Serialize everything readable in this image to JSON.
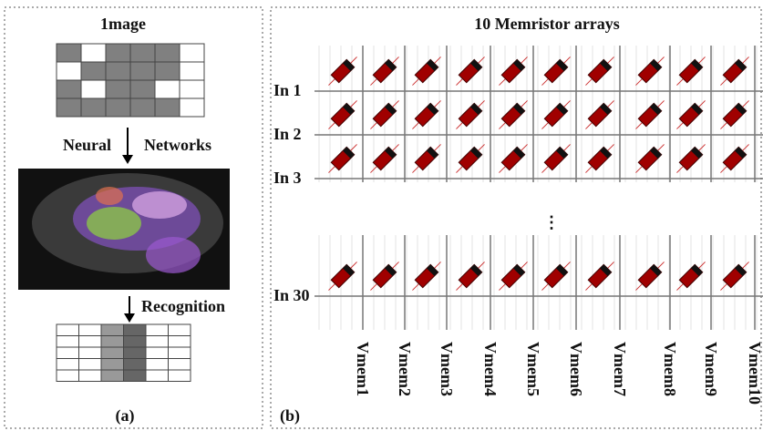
{
  "panel_a": {
    "title": "1mage",
    "arrow1_left": "Neural",
    "arrow1_right": "Networks",
    "arrow2_label": "Recognition",
    "caption": "(a)"
  },
  "panel_b": {
    "title": "10 Memristor arrays",
    "rows": [
      "In 1",
      "In 2",
      "In 3",
      "In 30"
    ],
    "columns": [
      "Vmem1",
      "Vmem2",
      "Vmem3",
      "Vmem4",
      "Vmem5",
      "Vmem6",
      "Vmem7",
      "Vmem8",
      "Vmem9",
      "Vmem10"
    ],
    "caption": "(b)"
  }
}
